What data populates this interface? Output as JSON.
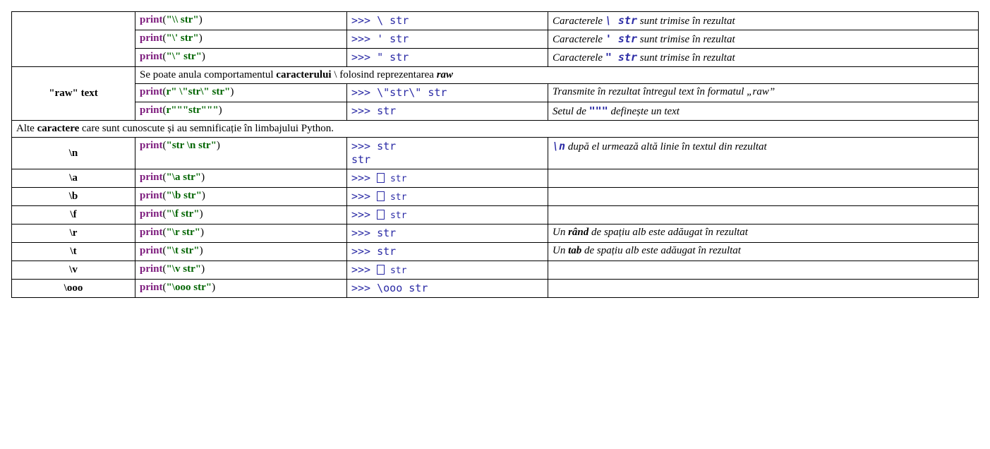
{
  "colors": {
    "keyword": "#7d1b7d",
    "string": "#006400",
    "mono": "#2a2aa5",
    "border": "#000000",
    "background": "#ffffff"
  },
  "r1": {
    "print": "print",
    "arg": "\"\\\\ str\"",
    "out_pre": ">>> ",
    "out": "\\ str",
    "d_pre": "Caracterele ",
    "d_code": "\\ str",
    "d_post": " sunt trimise în rezultat"
  },
  "r2": {
    "print": "print",
    "arg": "\"\\' str\"",
    "out_pre": ">>> ",
    "out": "'  str",
    "d_pre": "Caracterele ",
    "d_code": "' str",
    "d_post": " sunt trimise în rezultat"
  },
  "r3": {
    "print": "print",
    "arg": "\"\\\" str\"",
    "out_pre": ">>> ",
    "out": "\"  str",
    "d_pre": "Caracterele ",
    "d_code": "\" str",
    "d_post": " sunt trimise în rezultat"
  },
  "raw_header": "\"raw\" text",
  "raw_note_pre": "Se poate anula comportamentul ",
  "raw_note_b": "caracterului",
  "raw_note_mid": " \\ folosind reprezentarea ",
  "raw_note_bi": "raw",
  "r4": {
    "print": "print",
    "pre": "r",
    "arg": "\" \\\"str\\\"  str\"",
    "out_pre": ">>>  ",
    "out": "\\\"str\\\"  str",
    "desc": "Transmite în rezultat întregul text în formatul „raw”"
  },
  "r5": {
    "print": "print",
    "pre": "r",
    "arg": "\"\"\"str\"\"\"",
    "out_pre": ">>> ",
    "out": "str",
    "d_pre": "Setul de ",
    "d_code": "\"\"\"",
    "d_post": " definește un text"
  },
  "section_pre": "Alte ",
  "section_b": "caractere",
  "section_post": " care sunt cunoscute și au semnificație în limbajului Python.",
  "r6": {
    "head": "\\n",
    "print": "print",
    "arg": "\"str \\n str\"",
    "out_pre": ">>> ",
    "out1": "str",
    "out2": " str",
    "d_code": "\\n",
    "d_post": "   după el urmează altă linie în textul din rezultat"
  },
  "r7": {
    "head": "\\a",
    "print": "print",
    "arg": "\"\\a str\"",
    "out_pre": ">>> ",
    "out": " str"
  },
  "r8": {
    "head": "\\b",
    "print": "print",
    "arg": "\"\\b str\"",
    "out_pre": ">>> ",
    "out": " str"
  },
  "r9": {
    "head": "\\f",
    "print": "print",
    "arg": "\"\\f str\"",
    "out_pre": ">>> ",
    "out": " str"
  },
  "r10": {
    "head": "\\r",
    "print": "print",
    "arg": "\"\\r str\"",
    "out_pre": ">>> ",
    "out": " str",
    "d_pre": "Un ",
    "d_b": "rând",
    "d_post": " de spațiu alb este adăugat în rezultat"
  },
  "r11": {
    "head": "\\t",
    "print": "print",
    "arg": "\"\\t str\"",
    "out_pre": ">>>  ",
    "out": " str",
    "d_pre": "Un ",
    "d_b": "tab",
    "d_post": " de spațiu alb este adăugat în rezultat"
  },
  "r12": {
    "head": "\\v",
    "print": "print",
    "arg": "\"\\v str\"",
    "out_pre": ">>> ",
    "out": " str"
  },
  "r13": {
    "head": "\\ooo",
    "print": "print",
    "arg": "\"\\ooo str\"",
    "out_pre": ">>> ",
    "out": "\\ooo str"
  }
}
